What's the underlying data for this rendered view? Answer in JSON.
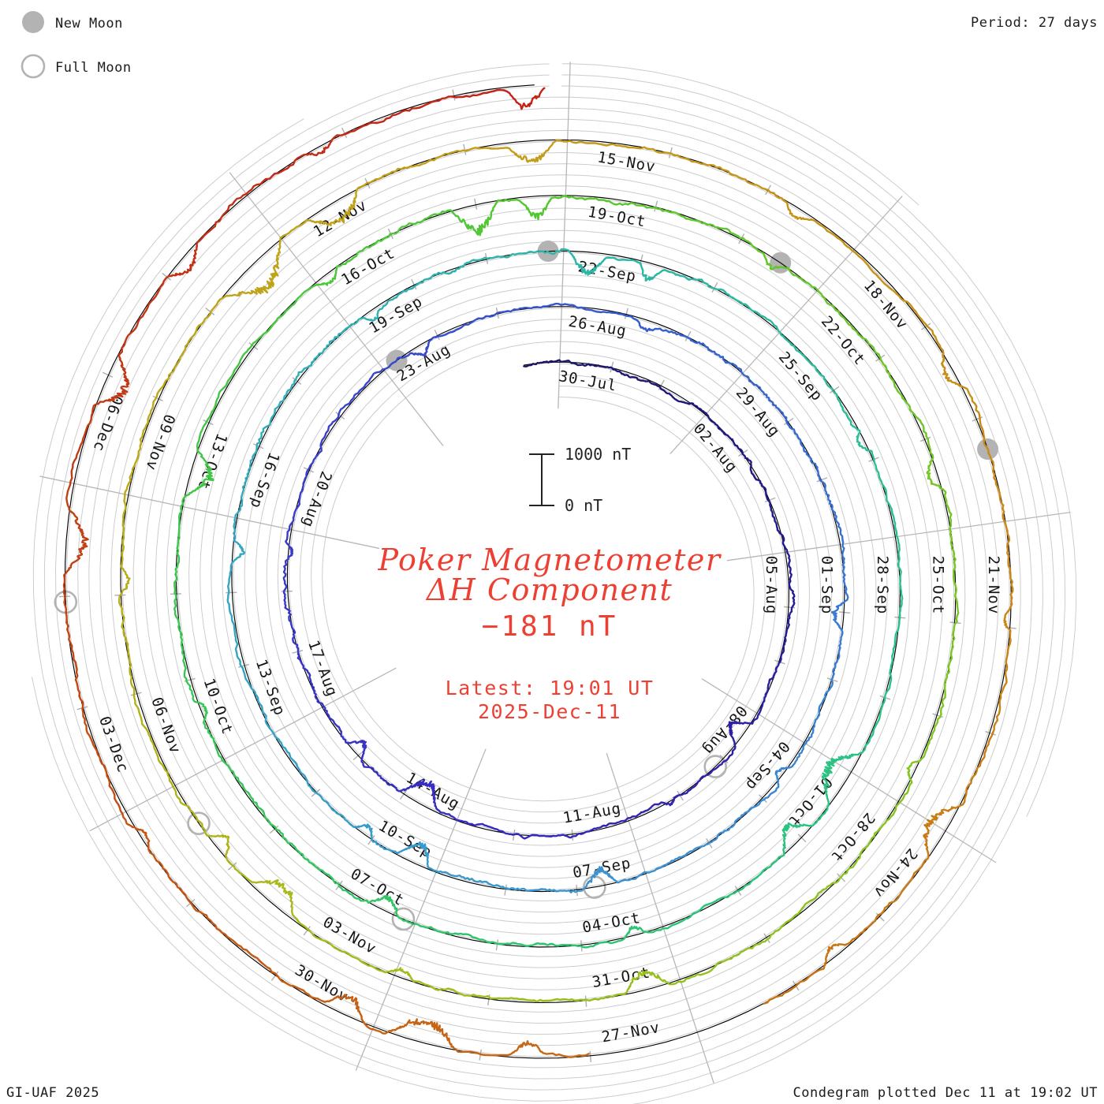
{
  "header": {
    "period": "Period: 27 days"
  },
  "legend": {
    "new_moon": "New Moon",
    "full_moon": "Full Moon"
  },
  "footer": {
    "left": "GI-UAF 2025",
    "right": "Condegram plotted Dec 11 at 19:02 UT"
  },
  "center": {
    "title_line1": "Poker Magnetometer",
    "title_line2": "ΔH Component",
    "value": "−181 nT",
    "latest_line1": "Latest: 19:01 UT",
    "latest_line2": "2025-Dec-11"
  },
  "scale": {
    "top": "1000 nT",
    "bottom": "0 nT",
    "ring_spacing_nt": 1000
  },
  "chart_data": {
    "type": "line",
    "style": "polar condegram spiral, one turn = 27 days, time runs clockwise from top",
    "title": "Poker Magnetometer ΔH Component",
    "period_days": 27,
    "ray_step_days": 3,
    "rays_start_angle_deg": 2,
    "latest_value_nt": -181,
    "latest_time": "19:01 UT 2025-Dec-11",
    "plotted_time": "Dec 11 at 19:02 UT",
    "ring_scale": {
      "nt_per_ring_gap": 1000,
      "bar_top": "1000 nT",
      "bar_bottom": "0 nT"
    },
    "ray_labels": [
      [
        "30-Jul",
        "26-Aug",
        "22-Sep",
        "19-Oct",
        "15-Nov"
      ],
      [
        "02-Aug",
        "29-Aug",
        "25-Sep",
        "22-Oct",
        "18-Nov"
      ],
      [
        "05-Aug",
        "01-Sep",
        "28-Sep",
        "25-Oct",
        "21-Nov"
      ],
      [
        "08-Aug",
        "04-Sep",
        "01-Oct",
        "28-Oct",
        "24-Nov"
      ],
      [
        "11-Aug",
        "07-Sep",
        "04-Oct",
        "31-Oct",
        "27-Nov"
      ],
      [
        "14-Aug",
        "10-Sep",
        "07-Oct",
        "03-Nov",
        "30-Nov"
      ],
      [
        "17-Aug",
        "13-Sep",
        "10-Oct",
        "06-Nov",
        "03-Dec"
      ],
      [
        "20-Aug",
        "16-Sep",
        "13-Oct",
        "09-Nov",
        "06-Dec"
      ],
      [
        "23-Aug",
        "19-Sep",
        "16-Oct",
        "12-Nov"
      ]
    ],
    "moons": {
      "new": [
        {
          "date": "23-Aug",
          "day": 24.25
        },
        {
          "date": "21-Sep",
          "day": 53.8
        },
        {
          "date": "21-Oct",
          "day": 83.5
        },
        {
          "date": "20-Nov",
          "day": 113.3
        }
      ],
      "full": [
        {
          "date": "09-Aug",
          "day": 10.2
        },
        {
          "date": "07-Sep",
          "day": 39.75
        },
        {
          "date": "07-Oct",
          "day": 69.15
        },
        {
          "date": "05-Nov",
          "day": 98.55
        },
        {
          "date": "05-Dec",
          "day": 127.95
        }
      ]
    },
    "trace_days": [
      -0.7,
      134.79
    ],
    "gaps_days": [
      [
        119.35,
        121.0
      ]
    ],
    "disturbance_events": [
      [
        9.2,
        24,
        0.5
      ],
      [
        11.1,
        -7,
        0.25
      ],
      [
        15.4,
        30,
        0.7
      ],
      [
        16.9,
        20,
        0.4
      ],
      [
        20.5,
        10,
        0.3
      ],
      [
        24.5,
        13,
        0.35
      ],
      [
        28.2,
        9,
        0.3
      ],
      [
        33.8,
        18,
        0.45
      ],
      [
        36.4,
        10,
        0.3
      ],
      [
        39.4,
        24,
        0.5
      ],
      [
        42.1,
        28,
        0.5
      ],
      [
        43.0,
        16,
        0.3
      ],
      [
        47.4,
        14,
        0.3
      ],
      [
        51.2,
        10,
        0.25
      ],
      [
        54.1,
        26,
        0.45
      ],
      [
        55.0,
        20,
        0.3
      ],
      [
        58.6,
        12,
        0.3
      ],
      [
        62.7,
        38,
        0.8
      ],
      [
        63.8,
        28,
        0.5
      ],
      [
        66.2,
        12,
        0.3
      ],
      [
        69.2,
        20,
        0.4
      ],
      [
        72.5,
        10,
        0.25
      ],
      [
        75.1,
        30,
        0.6
      ],
      [
        78.0,
        12,
        0.3
      ],
      [
        79.7,
        40,
        0.55
      ],
      [
        80.5,
        28,
        0.35
      ],
      [
        83.3,
        12,
        0.3
      ],
      [
        86.2,
        16,
        0.4
      ],
      [
        89.5,
        10,
        0.25
      ],
      [
        93.1,
        24,
        0.5
      ],
      [
        95.8,
        12,
        0.3
      ],
      [
        97.2,
        28,
        0.55
      ],
      [
        98.1,
        18,
        0.3
      ],
      [
        101.0,
        12,
        0.3
      ],
      [
        104.2,
        36,
        0.8
      ],
      [
        105.3,
        32,
        0.6
      ],
      [
        107.4,
        24,
        0.5
      ],
      [
        110.2,
        10,
        0.3
      ],
      [
        112.3,
        16,
        0.4
      ],
      [
        114.8,
        10,
        0.25
      ],
      [
        116.7,
        28,
        0.6
      ],
      [
        118.4,
        14,
        0.3
      ],
      [
        121.4,
        20,
        0.35
      ],
      [
        122.2,
        32,
        0.7
      ],
      [
        123.1,
        26,
        0.4
      ],
      [
        125.6,
        12,
        0.3
      ],
      [
        128.2,
        28,
        0.6
      ],
      [
        129.7,
        34,
        0.5
      ],
      [
        131.0,
        20,
        0.4
      ],
      [
        132.6,
        12,
        0.3
      ],
      [
        134.45,
        28,
        0.35
      ]
    ],
    "color_anchors": [
      [
        -1,
        "#1b1464"
      ],
      [
        6,
        "#241b8e"
      ],
      [
        14,
        "#3629c0"
      ],
      [
        22,
        "#3a3ecb"
      ],
      [
        30,
        "#3564cf"
      ],
      [
        38,
        "#3c8ed2"
      ],
      [
        46,
        "#35a4c4"
      ],
      [
        53,
        "#2eb3ab"
      ],
      [
        60,
        "#2bbf92"
      ],
      [
        67,
        "#2dc573"
      ],
      [
        74,
        "#3bc64f"
      ],
      [
        81,
        "#55c72f"
      ],
      [
        88,
        "#7cc522"
      ],
      [
        95,
        "#a0bf1c"
      ],
      [
        102,
        "#b9ab19"
      ],
      [
        108,
        "#c59b18"
      ],
      [
        114,
        "#c98816"
      ],
      [
        120,
        "#c87014"
      ],
      [
        125,
        "#c45813"
      ],
      [
        129,
        "#c13d15"
      ],
      [
        135,
        "#c31f17"
      ]
    ],
    "marker_colors": {
      "moon_gray": "#b3b3b3",
      "grid_gray": "#cccccc",
      "ray_gray": "#b7b7b7",
      "baseline_black": "#000000",
      "annotation_red": "#ee3f33"
    }
  }
}
